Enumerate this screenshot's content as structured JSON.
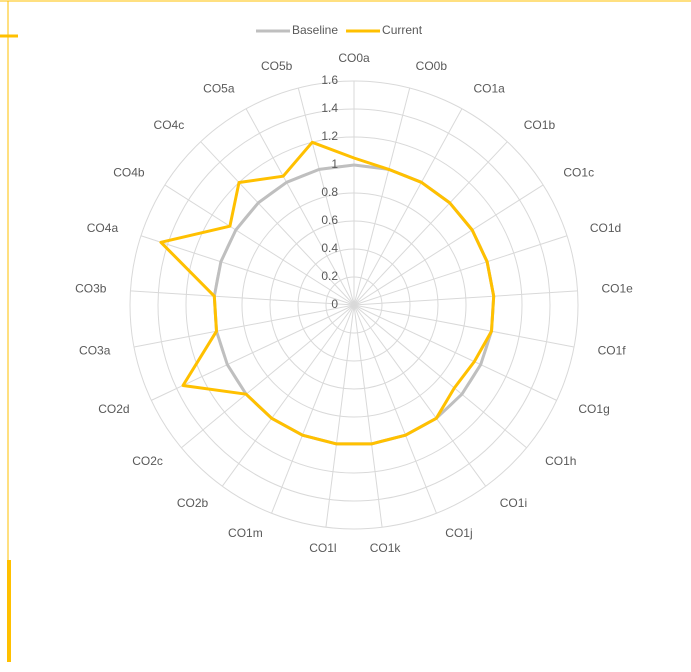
{
  "chart_data": {
    "type": "radar",
    "categories": [
      "CO0a",
      "CO0b",
      "CO1a",
      "CO1b",
      "CO1c",
      "CO1d",
      "CO1e",
      "CO1f",
      "CO1g",
      "CO1h",
      "CO1i",
      "CO1j",
      "CO1k",
      "CO1l",
      "CO1m",
      "CO2b",
      "CO2c",
      "CO2d",
      "CO3a",
      "CO3b",
      "CO4a",
      "CO4b",
      "CO4c",
      "CO5a",
      "CO5b"
    ],
    "series": [
      {
        "name": "Baseline",
        "color": "#bfbfbf",
        "values": [
          1,
          1,
          1,
          1,
          1,
          1,
          1,
          1,
          1,
          1,
          1,
          1,
          1,
          1,
          1,
          1,
          1,
          1,
          1,
          1,
          1,
          1,
          1,
          1,
          1
        ]
      },
      {
        "name": "Current",
        "color": "#ffc000",
        "values": [
          1.05,
          1,
          1,
          1,
          1,
          1,
          1,
          1,
          0.95,
          0.93,
          1,
          1,
          1,
          1,
          1,
          1,
          1,
          1.35,
          1,
          1,
          1.45,
          1.05,
          1.2,
          1.05,
          1.2
        ]
      }
    ],
    "ylim": [
      0,
      1.6
    ],
    "yticks": [
      0,
      0.2,
      0.4,
      0.6,
      0.8,
      1,
      1.2,
      1.4,
      1.6
    ],
    "grid": true,
    "legend": "top"
  }
}
